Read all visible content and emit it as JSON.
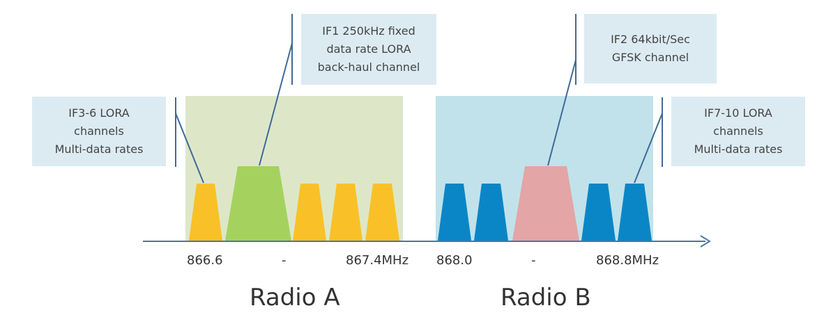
{
  "colors": {
    "radio_a_bg": "#dde7c8",
    "radio_b_bg": "#c1e2ea",
    "callout_bg": "#dcebf2",
    "lora_a": "#f9c127",
    "backhaul": "#a5d25f",
    "lora_b": "#0a86c6",
    "gfsk": "#e3a5a5",
    "axis": "#4b74a6",
    "leader": "#3f6a98"
  },
  "callouts": {
    "if36": {
      "lines": [
        "IF3-6 LORA",
        "channels",
        "Multi-data rates"
      ]
    },
    "if1": {
      "lines": [
        "IF1 250kHz fixed",
        "data rate LORA",
        "back-haul channel"
      ]
    },
    "if2": {
      "lines": [
        "IF2 64kbit/Sec",
        "GFSK channel"
      ]
    },
    "if710": {
      "lines": [
        "IF7-10 LORA",
        "channels",
        "Multi-data rates"
      ]
    }
  },
  "frequencies": {
    "a_start": "866.6",
    "a_dash": "-",
    "a_end": "867.4MHz",
    "b_start": "868.0",
    "b_dash": "-",
    "b_end": "868.8MHz"
  },
  "radios": {
    "a_label": "Radio A",
    "b_label": "Radio B"
  },
  "icons": [
    "arrow-right-icon"
  ]
}
